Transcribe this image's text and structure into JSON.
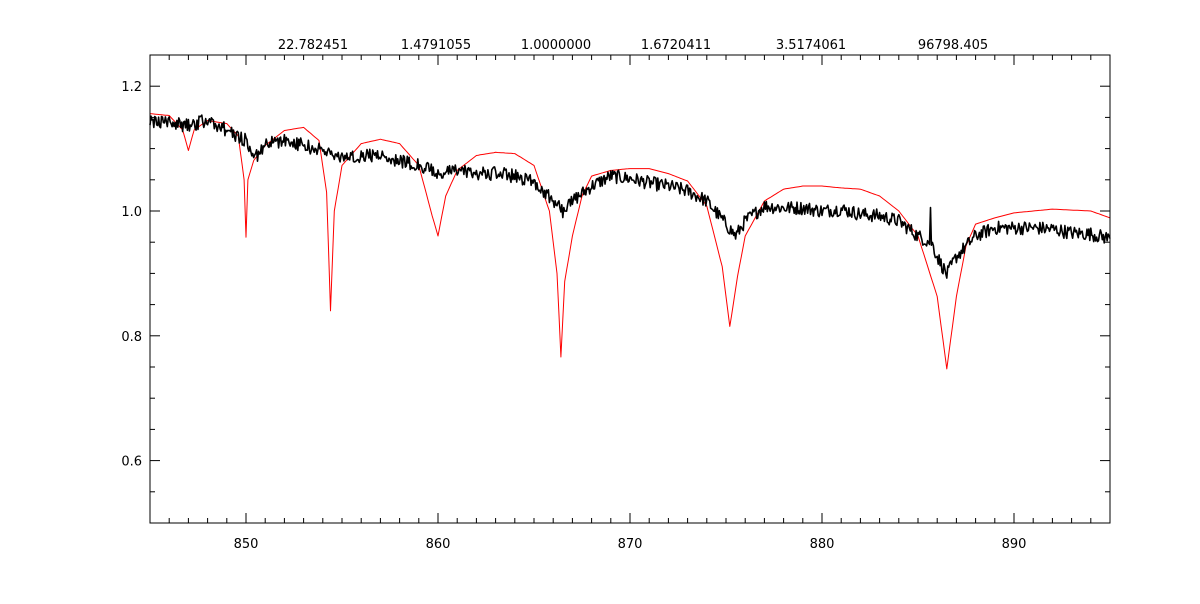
{
  "chart_data": {
    "type": "line",
    "title_values": [
      "22.782451",
      "1.4791055",
      "1.0000000",
      "1.6720411",
      "3.5174061",
      "96798.405"
    ],
    "xlabel": "",
    "ylabel": "",
    "xlim": [
      845,
      895
    ],
    "ylim": [
      0.5,
      1.25
    ],
    "x_ticks": [
      850,
      860,
      870,
      880,
      890
    ],
    "x_tick_labels": [
      "850",
      "860",
      "870",
      "880",
      "890"
    ],
    "x_minor_step": 1,
    "y_ticks": [
      0.6,
      0.8,
      1.0,
      1.2
    ],
    "y_tick_labels": [
      "0.6",
      "0.8",
      "1.0",
      "1.2"
    ],
    "y_minor_step": 0.05,
    "grid": false,
    "series": [
      {
        "color": "#ff0000",
        "points": [
          [
            845,
            1.156
          ],
          [
            846,
            1.153
          ],
          [
            846.7,
            1.13
          ],
          [
            847.0,
            1.097
          ],
          [
            847.3,
            1.13
          ],
          [
            848,
            1.145
          ],
          [
            849,
            1.14
          ],
          [
            849.6,
            1.12
          ],
          [
            849.9,
            1.05
          ],
          [
            850.0,
            0.958
          ],
          [
            850.1,
            1.05
          ],
          [
            850.4,
            1.081
          ],
          [
            851,
            1.105
          ],
          [
            852,
            1.129
          ],
          [
            853,
            1.134
          ],
          [
            853.8,
            1.113
          ],
          [
            854.2,
            1.03
          ],
          [
            854.4,
            0.84
          ],
          [
            854.6,
            1.0
          ],
          [
            855,
            1.073
          ],
          [
            856,
            1.108
          ],
          [
            857,
            1.115
          ],
          [
            858,
            1.108
          ],
          [
            859,
            1.073
          ],
          [
            859.7,
            0.992
          ],
          [
            860.0,
            0.96
          ],
          [
            860.4,
            1.024
          ],
          [
            861,
            1.065
          ],
          [
            862,
            1.089
          ],
          [
            863,
            1.094
          ],
          [
            864,
            1.092
          ],
          [
            865,
            1.073
          ],
          [
            865.8,
            1.0
          ],
          [
            866.2,
            0.9
          ],
          [
            866.4,
            0.766
          ],
          [
            866.6,
            0.887
          ],
          [
            867,
            0.96
          ],
          [
            867.5,
            1.024
          ],
          [
            868,
            1.056
          ],
          [
            869,
            1.065
          ],
          [
            870,
            1.068
          ],
          [
            871,
            1.068
          ],
          [
            872,
            1.06
          ],
          [
            873,
            1.048
          ],
          [
            874,
            1.008
          ],
          [
            874.8,
            0.911
          ],
          [
            875.2,
            0.815
          ],
          [
            875.6,
            0.895
          ],
          [
            876,
            0.96
          ],
          [
            877,
            1.016
          ],
          [
            878,
            1.035
          ],
          [
            879,
            1.04
          ],
          [
            880,
            1.04
          ],
          [
            881,
            1.037
          ],
          [
            882,
            1.035
          ],
          [
            883,
            1.024
          ],
          [
            884,
            1.0
          ],
          [
            885,
            0.96
          ],
          [
            886,
            0.863
          ],
          [
            886.5,
            0.747
          ],
          [
            887,
            0.863
          ],
          [
            887.5,
            0.944
          ],
          [
            888,
            0.979
          ],
          [
            889,
            0.989
          ],
          [
            890,
            0.997
          ],
          [
            892,
            1.003
          ],
          [
            894,
            1.0
          ],
          [
            895,
            0.989
          ]
        ]
      },
      {
        "color": "#000000",
        "points": [
          [
            845,
            1.145
          ],
          [
            846,
            1.14
          ],
          [
            847,
            1.137
          ],
          [
            848,
            1.146
          ],
          [
            849,
            1.13
          ],
          [
            850,
            1.113
          ],
          [
            850.5,
            1.085
          ],
          [
            851,
            1.108
          ],
          [
            852,
            1.113
          ],
          [
            853,
            1.105
          ],
          [
            854,
            1.097
          ],
          [
            855,
            1.085
          ],
          [
            856,
            1.089
          ],
          [
            857,
            1.089
          ],
          [
            858,
            1.081
          ],
          [
            859,
            1.073
          ],
          [
            860,
            1.06
          ],
          [
            861,
            1.065
          ],
          [
            862,
            1.06
          ],
          [
            863,
            1.06
          ],
          [
            864,
            1.056
          ],
          [
            865,
            1.048
          ],
          [
            866,
            1.016
          ],
          [
            866.5,
            1.0
          ],
          [
            867,
            1.016
          ],
          [
            868,
            1.04
          ],
          [
            869,
            1.056
          ],
          [
            870,
            1.052
          ],
          [
            871,
            1.045
          ],
          [
            872,
            1.04
          ],
          [
            873,
            1.032
          ],
          [
            874,
            1.016
          ],
          [
            875,
            0.979
          ],
          [
            875.5,
            0.96
          ],
          [
            876,
            0.984
          ],
          [
            877,
            1.008
          ],
          [
            878,
            1.005
          ],
          [
            879,
            1.005
          ],
          [
            880,
            1.0
          ],
          [
            881,
            1.003
          ],
          [
            882,
            0.995
          ],
          [
            883,
            0.992
          ],
          [
            884,
            0.984
          ],
          [
            885,
            0.96
          ],
          [
            885.6,
            0.95
          ],
          [
            885.65,
            1.0
          ],
          [
            885.7,
            0.95
          ],
          [
            886,
            0.927
          ],
          [
            886.5,
            0.898
          ],
          [
            887,
            0.927
          ],
          [
            888,
            0.96
          ],
          [
            889,
            0.973
          ],
          [
            890,
            0.973
          ],
          [
            891,
            0.973
          ],
          [
            892,
            0.971
          ],
          [
            893,
            0.965
          ],
          [
            894,
            0.963
          ],
          [
            895,
            0.956
          ]
        ]
      }
    ]
  }
}
